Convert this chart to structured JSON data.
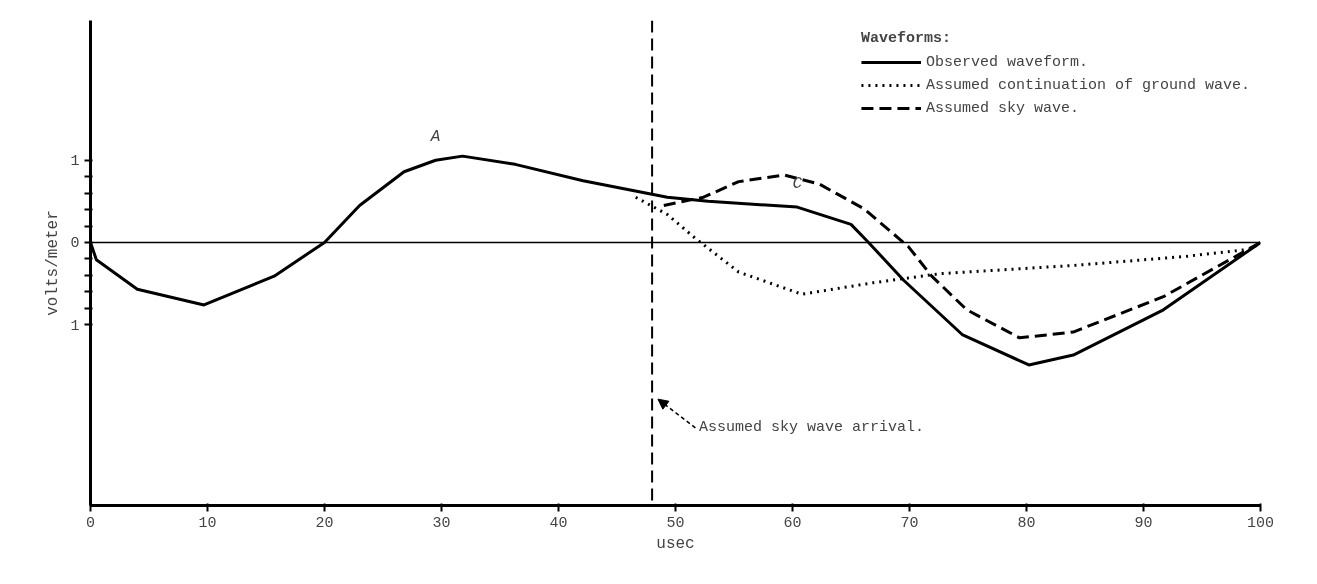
{
  "chart_data": {
    "type": "line",
    "xlabel": "usec",
    "ylabel": "volts/meter",
    "legend_title": "Waveforms:",
    "xlim": [
      0,
      100
    ],
    "ylim": [
      -3.2,
      2.7
    ],
    "xticks": [
      0,
      10,
      20,
      30,
      40,
      50,
      60,
      70,
      80,
      90,
      100
    ],
    "yticks": [
      {
        "value": -1,
        "label": "1"
      },
      {
        "value": -0.8,
        "label": null
      },
      {
        "value": -0.6,
        "label": null
      },
      {
        "value": -0.4,
        "label": null
      },
      {
        "value": -0.2,
        "label": null
      },
      0,
      {
        "value": 0.2,
        "label": null
      },
      {
        "value": 0.4,
        "label": null
      },
      {
        "value": 0.6,
        "label": null
      },
      {
        "value": 0.8,
        "label": null
      },
      1
    ],
    "grid": false,
    "legend": "top right",
    "series": [
      {
        "name": "Observed waveform.",
        "color": "#000000",
        "line_style": "solid",
        "x": [
          0,
          0.5,
          4.0,
          9.7,
          15.7,
          20,
          23,
          26.8,
          29.5,
          31.8,
          36.3,
          42.1,
          49.3,
          52.8,
          60.4,
          65,
          66.5,
          69.5,
          74.5,
          80.2,
          84,
          91.7,
          100
        ],
        "values": [
          0,
          -0.21,
          -0.57,
          -0.76,
          -0.41,
          0,
          0.45,
          0.86,
          1.0,
          1.05,
          0.95,
          0.75,
          0.55,
          0.5,
          0.43,
          0.22,
          0,
          -0.46,
          -1.12,
          -1.49,
          -1.37,
          -0.82,
          0
        ]
      },
      {
        "name": "Assumed continuation of ground wave.",
        "color": "#000000",
        "line_style": "dotted",
        "x": [
          46.6,
          49.3,
          51.7,
          55.4,
          60.8,
          66.9,
          72.6,
          84,
          93.6,
          99.2,
          100
        ],
        "values": [
          0.55,
          0.34,
          0.05,
          -0.36,
          -0.63,
          -0.49,
          -0.38,
          -0.28,
          -0.17,
          -0.08,
          0
        ]
      },
      {
        "name": "Assumed sky wave.",
        "color": "#000000",
        "line_style": "dashed",
        "x": [
          49,
          52.4,
          55.4,
          59.3,
          62.3,
          66.1,
          69.9,
          71.9,
          74.9,
          79.4,
          84,
          91.7,
          100
        ],
        "values": [
          0.45,
          0.55,
          0.74,
          0.82,
          0.71,
          0.41,
          -0.05,
          -0.41,
          -0.82,
          -1.16,
          -1.09,
          -0.66,
          0
        ]
      }
    ],
    "ref_lines": [
      {
        "axis": "y",
        "value": 0,
        "color": "#000000",
        "line_style": "solid"
      },
      {
        "axis": "x",
        "value": 48,
        "label": "Assumed sky wave arrival.",
        "color": "#000000",
        "line_style": "dashed"
      }
    ],
    "annotations": [
      {
        "text": "A",
        "x": 29.5,
        "y": 1.0
      },
      {
        "text": "C",
        "x": 60.4,
        "y": 0.43
      }
    ]
  }
}
